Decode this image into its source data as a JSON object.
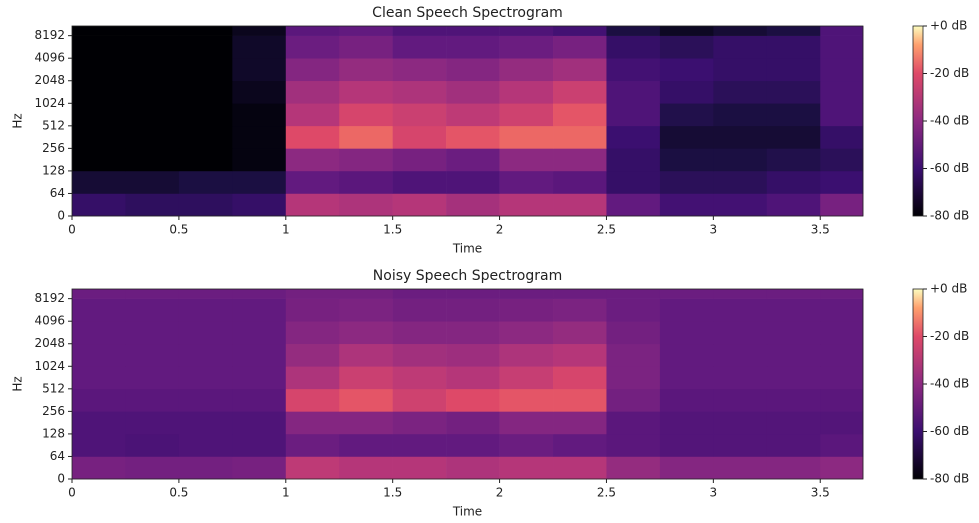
{
  "chart_data": [
    {
      "type": "heatmap",
      "title": "Clean Speech Spectrogram",
      "xlabel": "Time",
      "ylabel": "Hz",
      "xlim": [
        0,
        3.7
      ],
      "xticks": [
        0,
        0.5,
        1,
        1.5,
        2,
        2.5,
        3,
        3.5
      ],
      "ylim": [
        0,
        11025
      ],
      "yscale": "symlog",
      "linthresh": 64,
      "yticks": [
        0,
        64,
        128,
        256,
        512,
        1024,
        2048,
        4096,
        8192
      ],
      "x_edges": [
        0,
        0.25,
        0.5,
        0.75,
        1,
        1.25,
        1.5,
        1.75,
        2,
        2.25,
        2.5,
        2.75,
        3,
        3.25,
        3.5,
        3.7
      ],
      "y_edges": [
        0,
        64,
        128,
        256,
        512,
        1024,
        2048,
        4096,
        8192,
        11025
      ],
      "colormap": "magma",
      "clim": [
        -80,
        0
      ],
      "cticks": [
        {
          "value": 0,
          "label": "+0 dB"
        },
        {
          "value": -20,
          "label": "-20 dB"
        },
        {
          "value": -40,
          "label": "-40 dB"
        },
        {
          "value": -60,
          "label": "-60 dB"
        },
        {
          "value": -80,
          "label": "-80 dB"
        }
      ],
      "z": [
        [
          -62,
          -64,
          -64,
          -62,
          -30,
          -32,
          -30,
          -34,
          -30,
          -30,
          -50,
          -58,
          -58,
          -55,
          -45
        ],
        [
          -72,
          -72,
          -70,
          -70,
          -50,
          -52,
          -55,
          -55,
          -50,
          -52,
          -62,
          -65,
          -65,
          -62,
          -60
        ],
        [
          -80,
          -80,
          -80,
          -78,
          -40,
          -42,
          -45,
          -48,
          -40,
          -40,
          -62,
          -70,
          -70,
          -68,
          -65
        ],
        [
          -80,
          -80,
          -80,
          -78,
          -20,
          -15,
          -22,
          -18,
          -15,
          -15,
          -60,
          -72,
          -72,
          -72,
          -62
        ],
        [
          -80,
          -80,
          -80,
          -78,
          -30,
          -22,
          -25,
          -28,
          -24,
          -18,
          -55,
          -68,
          -70,
          -70,
          -55
        ],
        [
          -80,
          -80,
          -80,
          -76,
          -35,
          -30,
          -32,
          -35,
          -30,
          -25,
          -55,
          -62,
          -65,
          -65,
          -55
        ],
        [
          -80,
          -80,
          -80,
          -74,
          -42,
          -38,
          -40,
          -42,
          -38,
          -35,
          -58,
          -60,
          -62,
          -62,
          -55
        ],
        [
          -80,
          -80,
          -80,
          -74,
          -48,
          -45,
          -50,
          -50,
          -48,
          -45,
          -62,
          -65,
          -62,
          -62,
          -55
        ],
        [
          -80,
          -80,
          -80,
          -76,
          -52,
          -50,
          -55,
          -55,
          -55,
          -58,
          -70,
          -75,
          -72,
          -70,
          -55
        ]
      ]
    },
    {
      "type": "heatmap",
      "title": "Noisy Speech Spectrogram",
      "xlabel": "Time",
      "ylabel": "Hz",
      "xlim": [
        0,
        3.7
      ],
      "xticks": [
        0,
        0.5,
        1,
        1.5,
        2,
        2.5,
        3,
        3.5
      ],
      "ylim": [
        0,
        11025
      ],
      "yscale": "symlog",
      "linthresh": 64,
      "yticks": [
        0,
        64,
        128,
        256,
        512,
        1024,
        2048,
        4096,
        8192
      ],
      "x_edges": [
        0,
        0.25,
        0.5,
        0.75,
        1,
        1.25,
        1.5,
        1.75,
        2,
        2.25,
        2.5,
        2.75,
        3,
        3.25,
        3.5,
        3.7
      ],
      "y_edges": [
        0,
        64,
        128,
        256,
        512,
        1024,
        2048,
        4096,
        8192,
        11025
      ],
      "colormap": "magma",
      "clim": [
        -80,
        0
      ],
      "cticks": [
        {
          "value": 0,
          "label": "+0 dB"
        },
        {
          "value": -20,
          "label": "-20 dB"
        },
        {
          "value": -40,
          "label": "-40 dB"
        },
        {
          "value": -60,
          "label": "-60 dB"
        },
        {
          "value": -80,
          "label": "-80 dB"
        }
      ],
      "z": [
        [
          -45,
          -46,
          -46,
          -45,
          -28,
          -30,
          -30,
          -32,
          -30,
          -30,
          -38,
          -42,
          -42,
          -42,
          -40
        ],
        [
          -55,
          -56,
          -55,
          -55,
          -48,
          -50,
          -50,
          -50,
          -48,
          -50,
          -52,
          -54,
          -54,
          -54,
          -52
        ],
        [
          -55,
          -55,
          -55,
          -55,
          -42,
          -42,
          -44,
          -46,
          -42,
          -42,
          -52,
          -54,
          -54,
          -54,
          -54
        ],
        [
          -52,
          -52,
          -52,
          -52,
          -22,
          -18,
          -24,
          -20,
          -18,
          -18,
          -46,
          -52,
          -52,
          -52,
          -52
        ],
        [
          -50,
          -50,
          -50,
          -50,
          -32,
          -25,
          -28,
          -30,
          -26,
          -22,
          -44,
          -50,
          -50,
          -50,
          -50
        ],
        [
          -50,
          -50,
          -50,
          -50,
          -38,
          -32,
          -35,
          -36,
          -32,
          -30,
          -44,
          -50,
          -50,
          -50,
          -50
        ],
        [
          -50,
          -50,
          -50,
          -50,
          -42,
          -40,
          -42,
          -42,
          -40,
          -38,
          -46,
          -50,
          -50,
          -50,
          -50
        ],
        [
          -50,
          -50,
          -50,
          -50,
          -45,
          -44,
          -46,
          -46,
          -45,
          -44,
          -48,
          -50,
          -50,
          -50,
          -50
        ],
        [
          -48,
          -48,
          -48,
          -48,
          -46,
          -46,
          -48,
          -48,
          -48,
          -48,
          -48,
          -48,
          -48,
          -48,
          -48
        ]
      ]
    }
  ]
}
